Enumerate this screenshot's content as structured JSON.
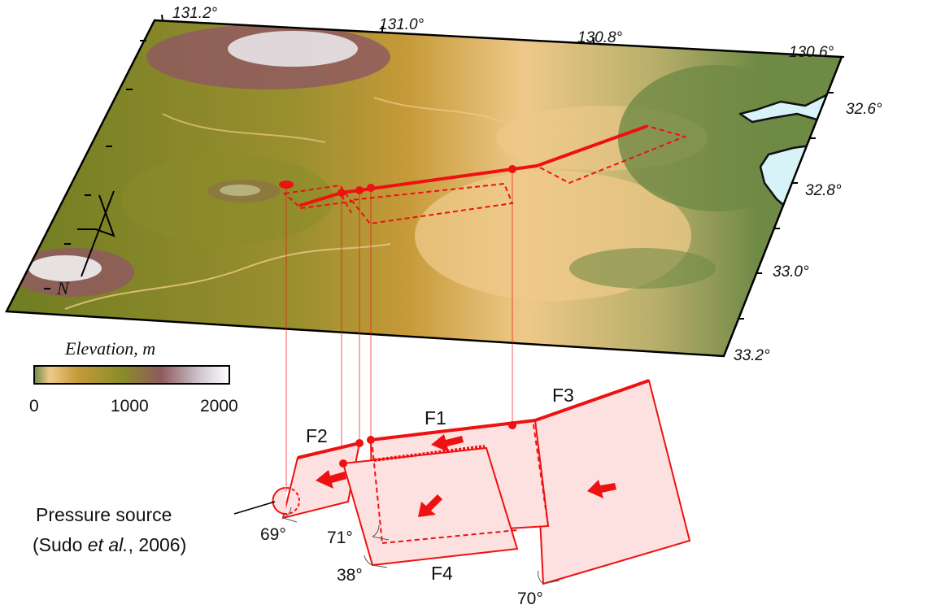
{
  "map": {
    "lon_labels": [
      "131.2°",
      "131.0°",
      "130.8°",
      "130.6°"
    ],
    "lat_labels": [
      "32.6°",
      "32.8°",
      "33.0°",
      "33.2°"
    ],
    "north_label": "N",
    "colors": {
      "low": "#efc98a",
      "mid_low": "#c69a39",
      "mid": "#8a8c2a",
      "mid_high": "#8f5a5f",
      "high": "#ffffff",
      "sea": "#d8f3f8",
      "fault": "#ee1111"
    }
  },
  "colorbar": {
    "title": "Elevation, m",
    "ticks": [
      "0",
      "1000",
      "2000"
    ]
  },
  "faults": {
    "labels": [
      "F1",
      "F2",
      "F3",
      "F4"
    ],
    "dips": [
      "69°",
      "71°",
      "38°",
      "70°"
    ]
  },
  "pressure_source": {
    "line1": "Pressure source",
    "line2_pre": "(Sudo ",
    "line2_italic": "et al.",
    "line2_post": ", 2006)"
  }
}
